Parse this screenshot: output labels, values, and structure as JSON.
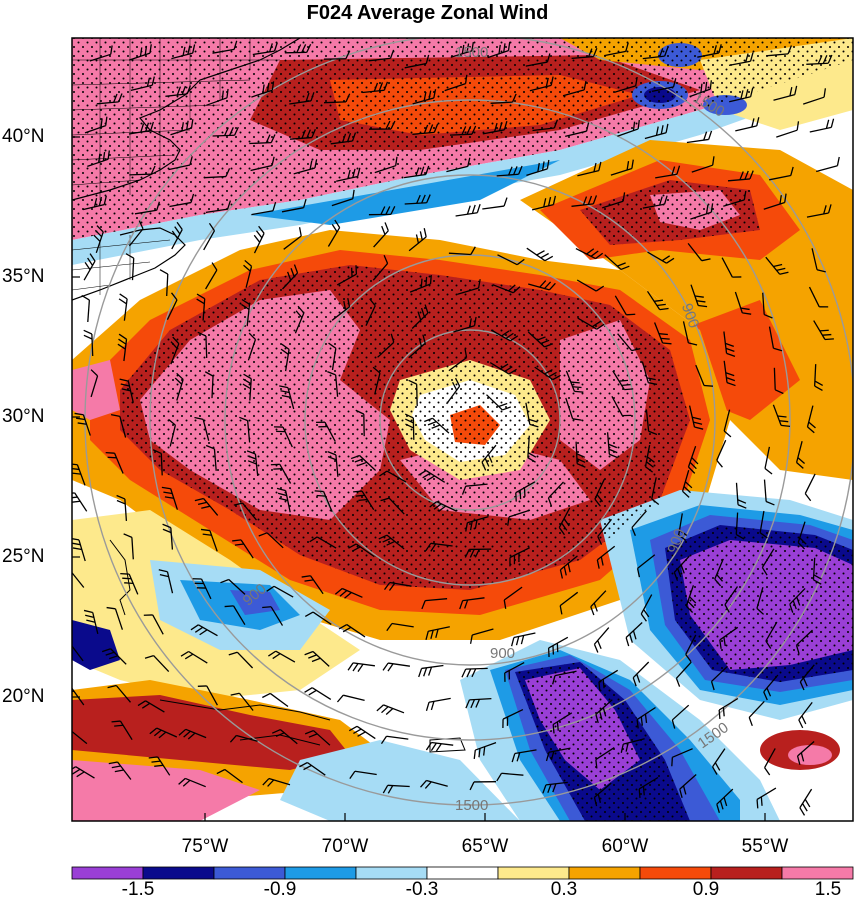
{
  "title": "F024 Average Zonal Wind",
  "axes": {
    "lat_labels": [
      "40°N",
      "35°N",
      "30°N",
      "25°N",
      "20°N"
    ],
    "lon_labels": [
      "75°W",
      "70°W",
      "65°W",
      "60°W",
      "55°W"
    ]
  },
  "colorbar": {
    "tick_labels": [
      "-1.5",
      "-0.9",
      "-0.3",
      "0.3",
      "0.9",
      "1.5"
    ],
    "colors": [
      "#9a3fd6",
      "#0a0a8c",
      "#3c5ad6",
      "#1e9be6",
      "#a6dcf5",
      "#ffffff",
      "#fde98c",
      "#f5a300",
      "#f54a0a",
      "#b8201e",
      "#f57aa8"
    ]
  },
  "range_rings": {
    "labels": [
      "1500",
      "1500",
      "900",
      "900",
      "900",
      "900",
      "1500",
      "1500"
    ]
  },
  "map_features": {
    "fill_colors": {
      "pink": "#f57aa8",
      "dark_red": "#b8201e",
      "red_orange": "#f54a0a",
      "orange": "#f5a300",
      "yellow": "#fde98c",
      "light_blue": "#a6dcf5",
      "blue": "#1e9be6",
      "mid_blue": "#3c5ad6",
      "navy": "#0a0a8c",
      "purple": "#9a3fd6"
    },
    "ring_color": "#9a9a9a",
    "barb_color": "#000000"
  }
}
